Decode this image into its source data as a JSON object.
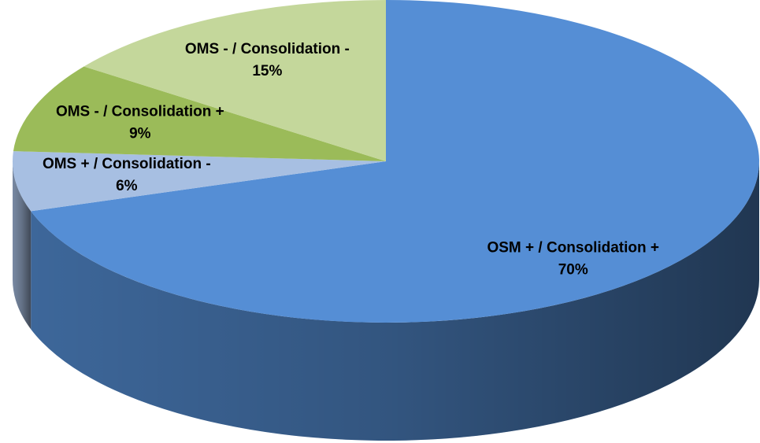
{
  "chart_data": {
    "type": "pie",
    "categories": [
      "OSM + / Consolidation +",
      "OMS + / Consolidation -",
      "OMS - / Consolidation +",
      "OMS - / Consolidation -"
    ],
    "values": [
      70,
      6,
      9,
      15
    ],
    "value_labels": [
      "70%",
      "6%",
      "9%",
      "15%"
    ],
    "colors": [
      "#558ed5",
      "#a7bfe2",
      "#9bbb59",
      "#c4d79b"
    ]
  }
}
